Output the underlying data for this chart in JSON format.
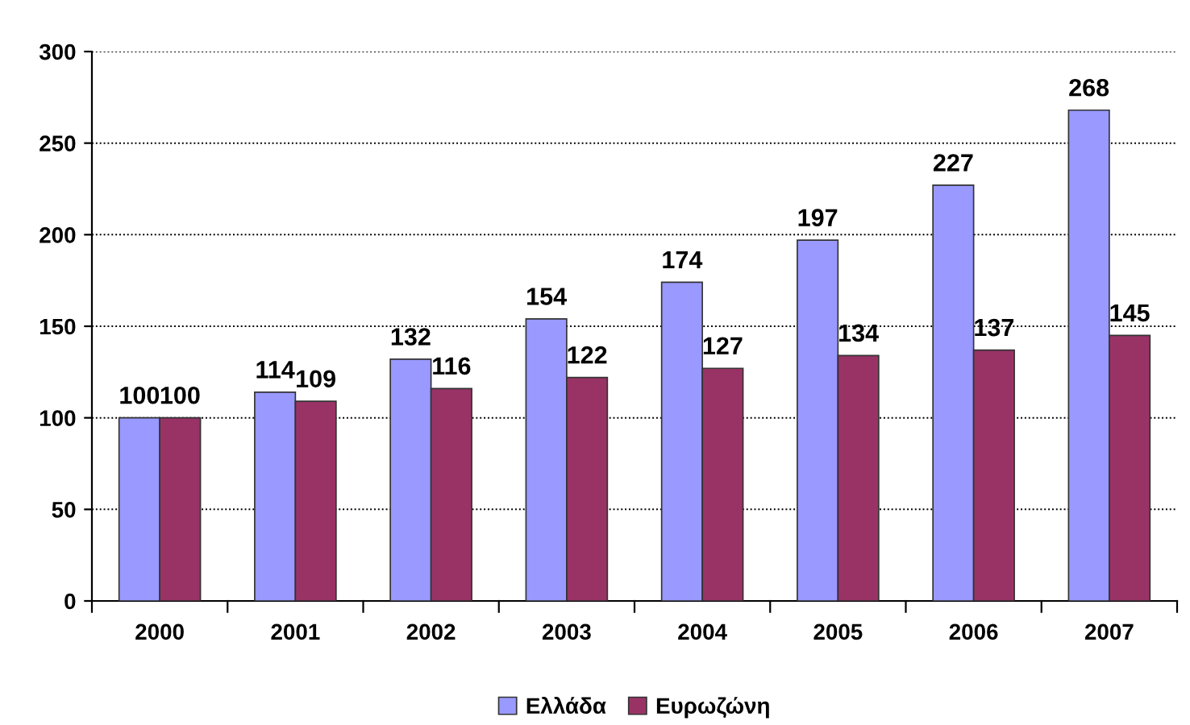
{
  "chart_data": {
    "type": "bar",
    "categories": [
      "2000",
      "2001",
      "2002",
      "2003",
      "2004",
      "2005",
      "2006",
      "2007"
    ],
    "series": [
      {
        "name": "Ελλάδα",
        "color": "#9999ff",
        "values": [
          100,
          114,
          132,
          154,
          174,
          197,
          227,
          268
        ]
      },
      {
        "name": "Ευρωζώνη",
        "color": "#993366",
        "values": [
          100,
          109,
          116,
          122,
          127,
          134,
          137,
          145
        ]
      }
    ],
    "ylim": [
      0,
      300
    ],
    "yticks": [
      0,
      50,
      100,
      150,
      200,
      250,
      300
    ],
    "grid": "y",
    "legend": "bottom",
    "data_labels": true
  }
}
